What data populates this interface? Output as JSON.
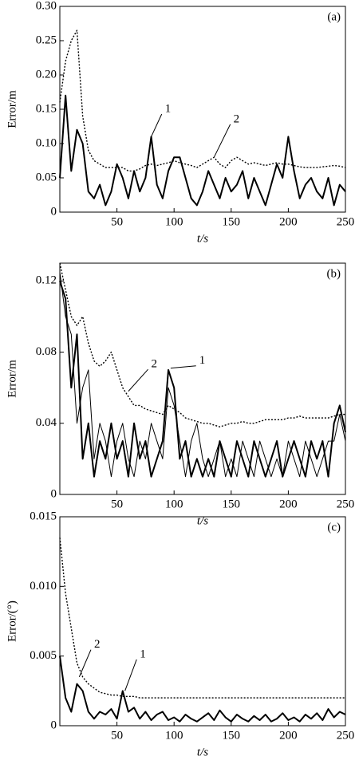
{
  "chart_data": [
    {
      "type": "line",
      "panel_label": "(a)",
      "ylabel": "Error/m",
      "xlabel": "t/s",
      "xlim": [
        0,
        250
      ],
      "xticks": [
        50,
        100,
        150,
        200,
        250
      ],
      "ylim": [
        0,
        0.3
      ],
      "yticks": [
        0,
        0.05,
        {
          "value": 0.1,
          "label": "0.10"
        },
        0.15,
        {
          "value": 0.2,
          "label": "0.20"
        },
        0.25,
        {
          "value": 0.3,
          "label": "0.30"
        }
      ],
      "x": [
        0,
        5,
        10,
        15,
        20,
        25,
        30,
        35,
        40,
        45,
        50,
        55,
        60,
        65,
        70,
        75,
        80,
        85,
        90,
        95,
        100,
        105,
        110,
        115,
        120,
        125,
        130,
        135,
        140,
        145,
        150,
        155,
        160,
        165,
        170,
        175,
        180,
        185,
        190,
        195,
        200,
        205,
        210,
        215,
        220,
        225,
        230,
        235,
        240,
        245,
        250
      ],
      "series": [
        {
          "color": "#000000",
          "style": "solid",
          "width": 2,
          "values": [
            0.05,
            0.17,
            0.06,
            0.12,
            0.1,
            0.03,
            0.02,
            0.04,
            0.01,
            0.03,
            0.07,
            0.05,
            0.02,
            0.06,
            0.03,
            0.05,
            0.11,
            0.04,
            0.02,
            0.06,
            0.08,
            0.08,
            0.05,
            0.02,
            0.01,
            0.03,
            0.06,
            0.04,
            0.02,
            0.05,
            0.03,
            0.04,
            0.06,
            0.02,
            0.05,
            0.03,
            0.01,
            0.04,
            0.07,
            0.05,
            0.11,
            0.06,
            0.02,
            0.04,
            0.05,
            0.03,
            0.02,
            0.05,
            0.01,
            0.04,
            0.03
          ]
        },
        {
          "color": "#000000",
          "style": "dotted",
          "width": 1.4,
          "values": [
            0.16,
            0.22,
            0.25,
            0.265,
            0.14,
            0.09,
            0.075,
            0.07,
            0.065,
            0.065,
            0.065,
            0.065,
            0.06,
            0.06,
            0.063,
            0.068,
            0.07,
            0.068,
            0.07,
            0.072,
            0.075,
            0.072,
            0.07,
            0.068,
            0.065,
            0.07,
            0.075,
            0.08,
            0.07,
            0.065,
            0.075,
            0.08,
            0.075,
            0.07,
            0.072,
            0.07,
            0.068,
            0.07,
            0.072,
            0.07,
            0.07,
            0.068,
            0.066,
            0.065,
            0.065,
            0.065,
            0.066,
            0.067,
            0.068,
            0.067,
            0.065
          ]
        }
      ],
      "annotations": [
        {
          "text": "1",
          "x": 80,
          "y": 0.11,
          "tx": 92,
          "ty": 0.15
        },
        {
          "text": "2",
          "x": 135,
          "y": 0.08,
          "tx": 152,
          "ty": 0.135
        }
      ]
    },
    {
      "type": "line",
      "panel_label": "(b)",
      "ylabel": "Error/m",
      "xlabel": "t/s",
      "xlim": [
        0,
        250
      ],
      "xticks": [
        50,
        100,
        150,
        200,
        250
      ],
      "ylim": [
        0,
        0.13
      ],
      "yticks": [
        0,
        0.04,
        0.08,
        0.12
      ],
      "x": [
        0,
        5,
        10,
        15,
        20,
        25,
        30,
        35,
        40,
        45,
        50,
        55,
        60,
        65,
        70,
        75,
        80,
        85,
        90,
        95,
        100,
        105,
        110,
        115,
        120,
        125,
        130,
        135,
        140,
        145,
        150,
        155,
        160,
        165,
        170,
        175,
        180,
        185,
        190,
        195,
        200,
        205,
        210,
        215,
        220,
        225,
        230,
        235,
        240,
        245,
        250
      ],
      "series": [
        {
          "color": "#000000",
          "style": "solid",
          "width": 2,
          "values": [
            0.12,
            0.11,
            0.06,
            0.09,
            0.02,
            0.04,
            0.01,
            0.03,
            0.02,
            0.04,
            0.02,
            0.03,
            0.01,
            0.04,
            0.02,
            0.03,
            0.01,
            0.02,
            0.03,
            0.07,
            0.06,
            0.02,
            0.03,
            0.01,
            0.02,
            0.01,
            0.02,
            0.01,
            0.03,
            0.02,
            0.01,
            0.03,
            0.02,
            0.01,
            0.03,
            0.02,
            0.01,
            0.02,
            0.03,
            0.01,
            0.02,
            0.03,
            0.02,
            0.01,
            0.03,
            0.02,
            0.03,
            0.01,
            0.04,
            0.05,
            0.035
          ]
        },
        {
          "color": "#000000",
          "style": "solid",
          "width": 1,
          "values": [
            0.125,
            0.1,
            0.09,
            0.04,
            0.06,
            0.07,
            0.02,
            0.04,
            0.03,
            0.01,
            0.03,
            0.04,
            0.02,
            0.01,
            0.03,
            0.02,
            0.04,
            0.03,
            0.02,
            0.06,
            0.05,
            0.03,
            0.01,
            0.03,
            0.04,
            0.02,
            0.01,
            0.02,
            0.03,
            0.01,
            0.02,
            0.01,
            0.03,
            0.02,
            0.01,
            0.03,
            0.02,
            0.01,
            0.02,
            0.01,
            0.03,
            0.02,
            0.01,
            0.03,
            0.02,
            0.01,
            0.02,
            0.03,
            0.03,
            0.045,
            0.03
          ]
        },
        {
          "color": "#000000",
          "style": "dotted",
          "width": 1.4,
          "values": [
            0.13,
            0.115,
            0.1,
            0.095,
            0.1,
            0.085,
            0.075,
            0.072,
            0.075,
            0.08,
            0.07,
            0.06,
            0.055,
            0.05,
            0.05,
            0.048,
            0.047,
            0.046,
            0.045,
            0.05,
            0.048,
            0.046,
            0.043,
            0.042,
            0.041,
            0.04,
            0.04,
            0.039,
            0.038,
            0.039,
            0.04,
            0.04,
            0.041,
            0.04,
            0.04,
            0.041,
            0.042,
            0.042,
            0.042,
            0.042,
            0.043,
            0.043,
            0.044,
            0.043,
            0.043,
            0.043,
            0.043,
            0.043,
            0.044,
            0.045,
            0.045
          ]
        }
      ],
      "annotations": [
        {
          "text": "2",
          "x": 60,
          "y": 0.058,
          "tx": 80,
          "ty": 0.073
        },
        {
          "text": "1",
          "x": 97,
          "y": 0.071,
          "tx": 122,
          "ty": 0.075
        }
      ]
    },
    {
      "type": "line",
      "panel_label": "(c)",
      "ylabel": "Error/(°)",
      "xlabel": "t/s",
      "xlim": [
        0,
        250
      ],
      "xticks": [
        50,
        100,
        150,
        200,
        250
      ],
      "ylim": [
        0,
        0.015
      ],
      "yticks": [
        0,
        0.005,
        {
          "value": 0.01,
          "label": "0.010"
        },
        0.015
      ],
      "x": [
        0,
        5,
        10,
        15,
        20,
        25,
        30,
        35,
        40,
        45,
        50,
        55,
        60,
        65,
        70,
        75,
        80,
        85,
        90,
        95,
        100,
        105,
        110,
        115,
        120,
        125,
        130,
        135,
        140,
        145,
        150,
        155,
        160,
        165,
        170,
        175,
        180,
        185,
        190,
        195,
        200,
        205,
        210,
        215,
        220,
        225,
        230,
        235,
        240,
        245,
        250
      ],
      "series": [
        {
          "color": "#000000",
          "style": "solid",
          "width": 2,
          "values": [
            0.005,
            0.002,
            0.001,
            0.003,
            0.0025,
            0.001,
            0.0005,
            0.001,
            0.0008,
            0.0012,
            0.0005,
            0.0025,
            0.001,
            0.0013,
            0.0005,
            0.001,
            0.0004,
            0.0008,
            0.001,
            0.0004,
            0.0006,
            0.0003,
            0.0008,
            0.0005,
            0.0003,
            0.0006,
            0.0009,
            0.0004,
            0.0011,
            0.0006,
            0.0003,
            0.0008,
            0.0005,
            0.0003,
            0.0007,
            0.0004,
            0.0008,
            0.0003,
            0.0005,
            0.0009,
            0.0004,
            0.0006,
            0.0003,
            0.0008,
            0.0005,
            0.0009,
            0.0004,
            0.0012,
            0.0006,
            0.001,
            0.0008
          ]
        },
        {
          "color": "#000000",
          "style": "dotted",
          "width": 1.4,
          "values": [
            0.0135,
            0.0095,
            0.007,
            0.0045,
            0.0035,
            0.003,
            0.0027,
            0.0024,
            0.0023,
            0.0022,
            0.0022,
            0.0021,
            0.0021,
            0.0021,
            0.002,
            0.002,
            0.002,
            0.002,
            0.002,
            0.002,
            0.002,
            0.002,
            0.002,
            0.002,
            0.002,
            0.002,
            0.002,
            0.002,
            0.002,
            0.002,
            0.002,
            0.002,
            0.002,
            0.002,
            0.002,
            0.002,
            0.002,
            0.002,
            0.002,
            0.002,
            0.002,
            0.002,
            0.002,
            0.002,
            0.002,
            0.002,
            0.002,
            0.002,
            0.002,
            0.002,
            0.002
          ]
        }
      ],
      "annotations": [
        {
          "text": "2",
          "x": 17,
          "y": 0.0035,
          "tx": 30,
          "ty": 0.0058
        },
        {
          "text": "1",
          "x": 57,
          "y": 0.0025,
          "tx": 70,
          "ty": 0.0051
        }
      ]
    }
  ]
}
